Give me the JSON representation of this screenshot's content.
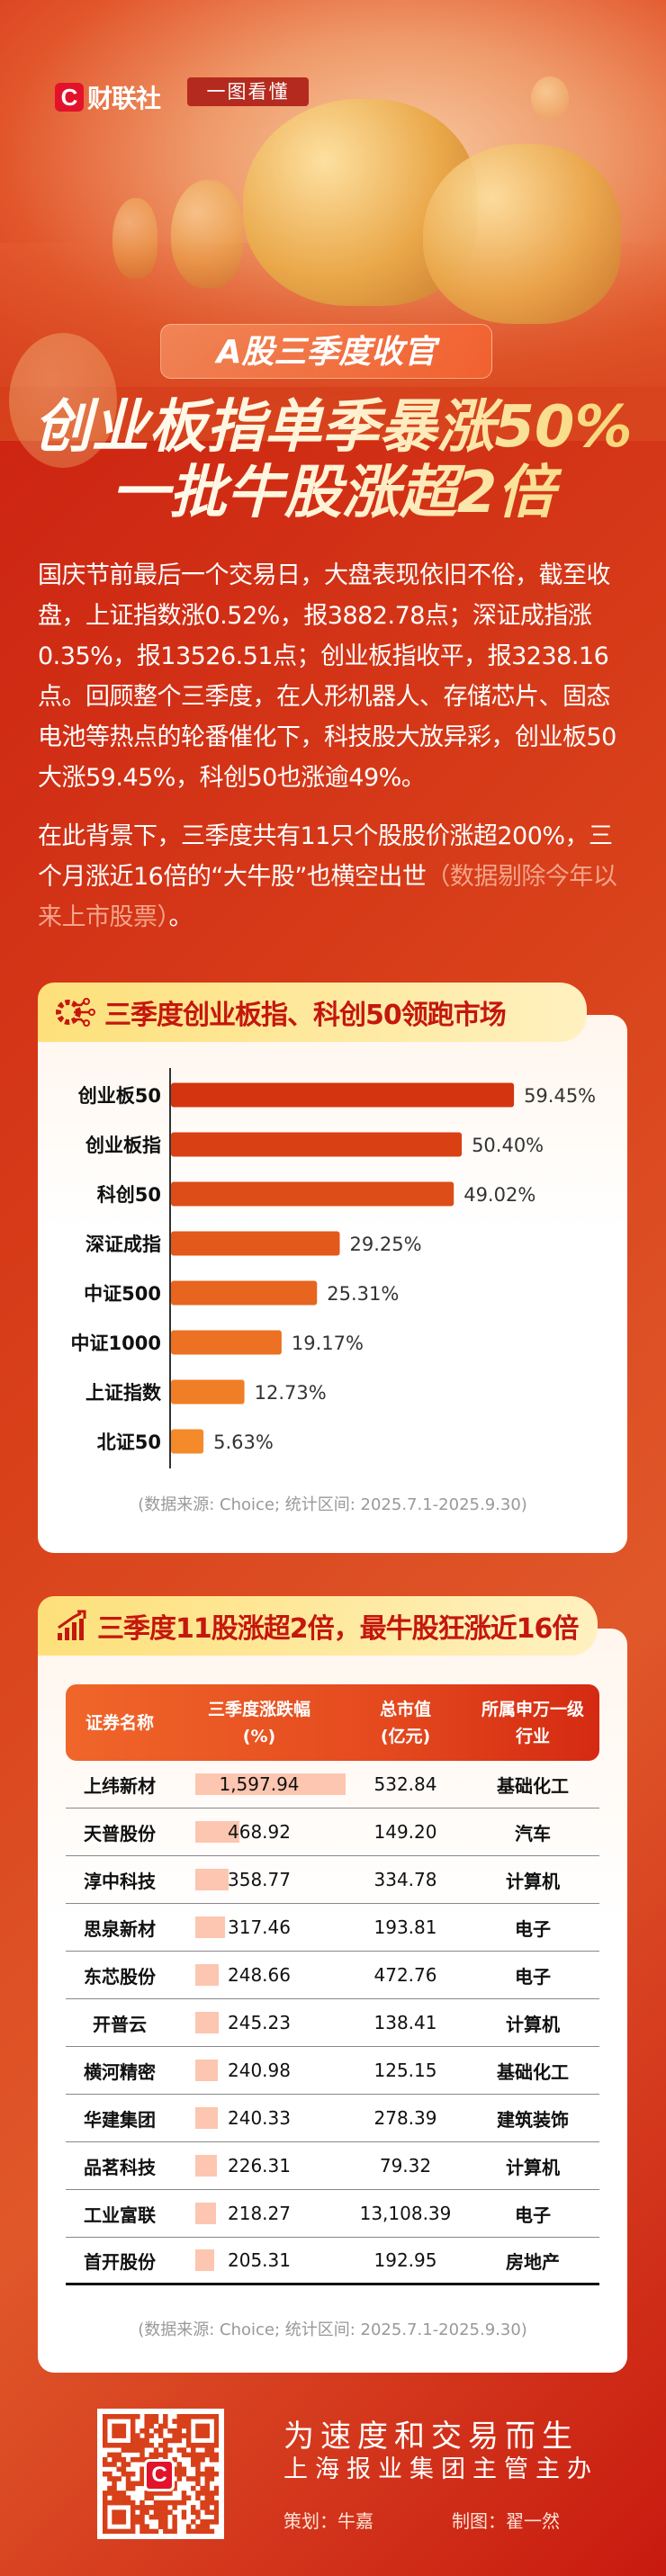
{
  "header": {
    "logo_text": "财联社",
    "logo_letter": "C",
    "badge": "一图看懂",
    "pill": "A股三季度收官",
    "title_line1": "创业板指单季暴涨50%",
    "title_line2": "一批牛股涨超2倍"
  },
  "intro": {
    "p1": "国庆节前最后一个交易日，大盘表现依旧不俗，截至收盘，上证指数涨0.52%，报3882.78点；深证成指涨0.35%，报13526.51点；创业板指收平，报3238.16点。回顾整个三季度，在人形机器人、存储芯片、固态电池等热点的轮番催化下，科技股大放异彩，创业板50大涨59.45%，科创50也涨逾49%。",
    "p2_main": "在此背景下，三季度共有11只个股股价涨超200%，三个月涨近16倍的“大牛股”也横空出世",
    "p2_note": "（数据剔除今年以来上市股票）",
    "p2_end": "。"
  },
  "chart_data": {
    "type": "bar",
    "orientation": "horizontal",
    "title": "三季度创业板指、科创50领跑市场",
    "categories": [
      "创业板50",
      "创业板指",
      "科创50",
      "深证成指",
      "中证500",
      "中证1000",
      "上证指数",
      "北证50"
    ],
    "values": [
      59.45,
      50.4,
      49.02,
      29.25,
      25.31,
      19.17,
      12.73,
      5.63
    ],
    "labels": [
      "59.45%",
      "50.40%",
      "49.02%",
      "29.25%",
      "25.31%",
      "19.17%",
      "12.73%",
      "5.63%"
    ],
    "source": "(数据来源: Choice; 统计区间: 2025.7.1-2025.9.30)",
    "colors": {
      "top": "#d4340f",
      "bottom": "#f58a2a"
    }
  },
  "table": {
    "title": "三季度11股涨超2倍，最牛股狂涨近16倍",
    "headers": [
      "证券名称",
      "三季度涨跌幅\n(%)",
      "总市值\n(亿元)",
      "所属申万一级\n行业"
    ],
    "rows": [
      [
        "上纬新材",
        "1,597.94",
        "532.84",
        "基础化工"
      ],
      [
        "天普股份",
        "468.92",
        "149.20",
        "汽车"
      ],
      [
        "淳中科技",
        "358.77",
        "334.78",
        "计算机"
      ],
      [
        "思泉新材",
        "317.46",
        "193.81",
        "电子"
      ],
      [
        "东芯股份",
        "248.66",
        "472.76",
        "电子"
      ],
      [
        "开普云",
        "245.23",
        "138.41",
        "计算机"
      ],
      [
        "横河精密",
        "240.98",
        "125.15",
        "基础化工"
      ],
      [
        "华建集团",
        "240.33",
        "278.39",
        "建筑装饰"
      ],
      [
        "品茗科技",
        "226.31",
        "79.32",
        "计算机"
      ],
      [
        "工业富联",
        "218.27",
        "13,108.39",
        "电子"
      ],
      [
        "首开股份",
        "205.31",
        "192.95",
        "房地产"
      ]
    ],
    "source": "(数据来源: Choice; 统计区间: 2025.7.1-2025.9.30)"
  },
  "footer": {
    "slogan": "为速度和交易而生",
    "sub": "上海报业集团主管主办",
    "planner": "策划：牛嘉",
    "designer": "制图：翟一然",
    "qr_letter": "C"
  }
}
